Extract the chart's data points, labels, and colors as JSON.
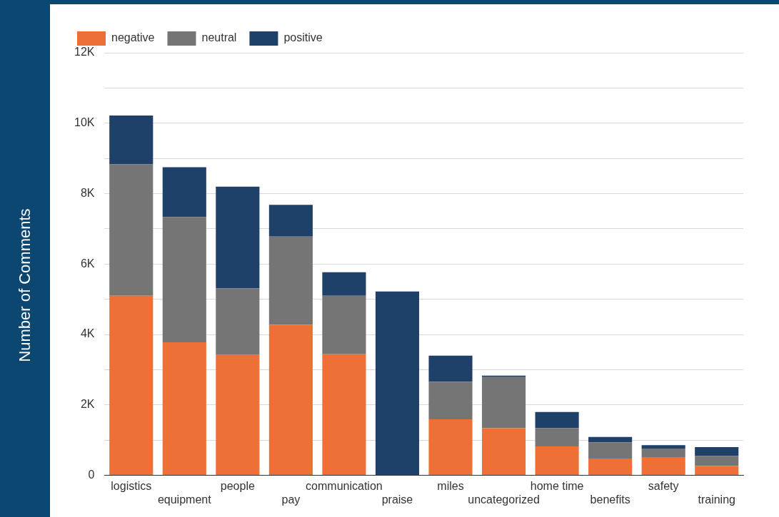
{
  "chart_data": {
    "type": "bar",
    "stacked": true,
    "ylabel": "Number of Comments",
    "categories": [
      "logistics",
      "equipment",
      "people",
      "pay",
      "communication",
      "praise",
      "miles",
      "uncategorized",
      "home time",
      "benefits",
      "safety",
      "training"
    ],
    "series": [
      {
        "name": "negative",
        "color": "#ee7036",
        "values": [
          5100,
          3780,
          3420,
          4280,
          3440,
          0,
          1590,
          1340,
          820,
          480,
          520,
          270
        ]
      },
      {
        "name": "neutral",
        "color": "#757575",
        "values": [
          3730,
          3560,
          1890,
          2500,
          1660,
          0,
          1070,
          1450,
          520,
          460,
          240,
          280
        ]
      },
      {
        "name": "positive",
        "color": "#1f4068",
        "values": [
          1390,
          1410,
          2890,
          900,
          670,
          5220,
          740,
          40,
          460,
          150,
          100,
          250
        ]
      }
    ],
    "ylim": [
      0,
      12000
    ],
    "yticks": [
      0,
      {
        "value": 1000,
        "label": null
      },
      {
        "value": 2000,
        "label": "2K"
      },
      {
        "value": 3000,
        "label": null
      },
      {
        "value": 4000,
        "label": "4K"
      },
      {
        "value": 5000,
        "label": null
      },
      {
        "value": 6000,
        "label": "6K"
      },
      {
        "value": 7000,
        "label": null
      },
      {
        "value": 8000,
        "label": "8K"
      },
      {
        "value": 9000,
        "label": null
      },
      {
        "value": 10000,
        "label": "10K"
      },
      {
        "value": 11000,
        "label": null
      },
      {
        "value": 12000,
        "label": "12K"
      }
    ],
    "grid": "y",
    "legend": "top left"
  }
}
